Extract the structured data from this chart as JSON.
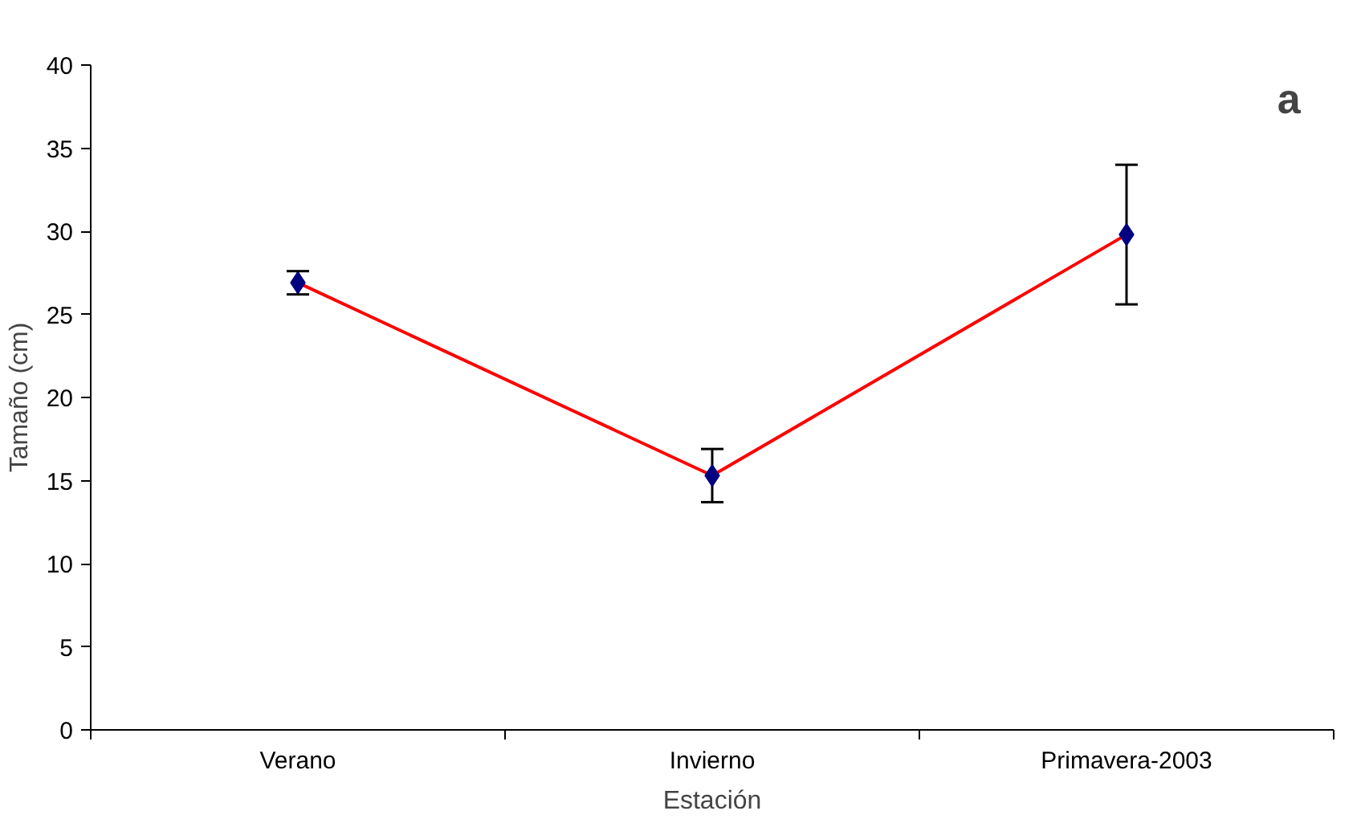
{
  "chart_data": {
    "type": "line",
    "xlabel": "Estación",
    "ylabel": "Tamaño (cm)",
    "categories": [
      "Verano",
      "Invierno",
      "Primavera-2003"
    ],
    "series": [
      {
        "color": "#ff0000",
        "values": [
          26.9,
          15.3,
          29.8
        ],
        "errors": [
          0.7,
          1.6,
          4.2
        ],
        "colors": [
          "#000080",
          "#000080",
          "#000080"
        ]
      }
    ],
    "marker": "diamond",
    "ylim": [
      0,
      40
    ],
    "yticks": [
      0,
      5,
      10,
      15,
      20,
      25,
      30,
      35,
      40
    ],
    "grid": false,
    "annotations": [
      "a"
    ]
  }
}
